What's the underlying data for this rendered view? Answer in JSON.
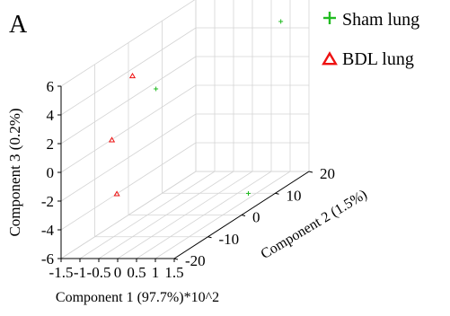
{
  "chart_data": {
    "type": "scatter",
    "panel_label": "A",
    "xlabel": "Component 1 (97.7%)*10^2",
    "ylabel": "Component 2 (1.5%)",
    "zlabel": "Component 3 (0.2%)",
    "xlim": [
      -1.5,
      1.5
    ],
    "ylim": [
      -20,
      20
    ],
    "zlim": [
      -6,
      6
    ],
    "x_ticks": [
      "-1.5",
      "-1",
      "-0.5",
      "0",
      "0.5",
      "1",
      "1.5"
    ],
    "y_ticks": [
      "-20",
      "-10",
      "0",
      "10",
      "20"
    ],
    "z_ticks": [
      "-6",
      "-4",
      "-2",
      "0",
      "2",
      "4",
      "6"
    ],
    "grid": true,
    "legend_position": "top-right",
    "series": [
      {
        "name": "Sham lung",
        "marker": "plus",
        "color": "#22bb22",
        "points": [
          {
            "x": 1.2,
            "y": 15,
            "z": 5.2
          },
          {
            "x": 0.3,
            "y": -12,
            "z": 4.6
          },
          {
            "x": 1.5,
            "y": 2,
            "z": -4.8
          }
        ]
      },
      {
        "name": "BDL lung",
        "marker": "triangle",
        "color": "#ee1111",
        "points": [
          {
            "x": -0.5,
            "y": -10,
            "z": 5.2
          },
          {
            "x": -0.6,
            "y": -15,
            "z": 1.5
          },
          {
            "x": -0.2,
            "y": -18,
            "z": -1.8
          }
        ]
      }
    ]
  }
}
